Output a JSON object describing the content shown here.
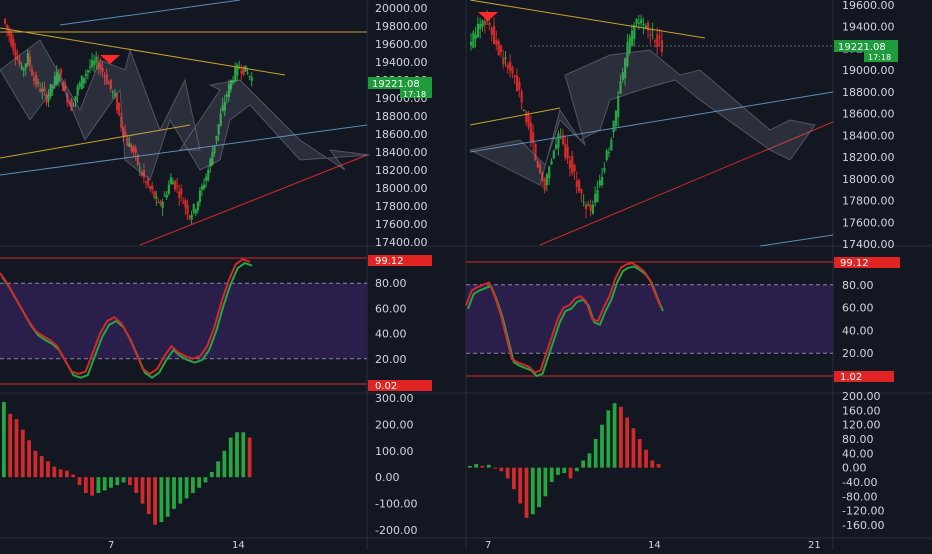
{
  "colors": {
    "background": "#131722",
    "axis_text": "#d1d4dc",
    "up": "#26a641",
    "down": "#d12a2a",
    "band_fill": "#2a1f4a",
    "band_line": "#8a84a8",
    "trend_orange": "#c9a227",
    "trend_blue": "#5b8db8",
    "trend_red": "#d12a2a",
    "price_tag": "#1e9b3a",
    "stoch_tag": "#e02424"
  },
  "left": {
    "price_axis": [
      "20000.00",
      "19800.00",
      "19600.00",
      "19400.00",
      "19200.00",
      "19000.00",
      "18800.00",
      "18600.00",
      "18400.00",
      "18200.00",
      "18000.00",
      "17800.00",
      "17600.00",
      "17400.00"
    ],
    "price_tag": "19221.08",
    "time_tag": "17:18",
    "stoch_axis": [
      "80.00",
      "60.00",
      "40.00",
      "20.00"
    ],
    "stoch_top_tag": "99.12",
    "stoch_bottom_tag": "0.02",
    "macd_axis": [
      "300.00",
      "200.00",
      "100.00",
      "0.00",
      "-100.00",
      "-200.00"
    ],
    "date_labels": [
      "7",
      "14"
    ]
  },
  "right": {
    "price_axis": [
      "19600.00",
      "19400.00",
      "19200.00",
      "19000.00",
      "18800.00",
      "18600.00",
      "18400.00",
      "18200.00",
      "18000.00",
      "17800.00",
      "17600.00",
      "17400.00"
    ],
    "price_tag": "19221.08",
    "time_tag": "17:18",
    "stoch_axis": [
      "80.00",
      "60.00",
      "40.00",
      "20.00"
    ],
    "stoch_top_tag": "99.12",
    "stoch_bottom_tag": "1.02",
    "macd_axis": [
      "200.00",
      "160.00",
      "120.00",
      "80.00",
      "40.00",
      "0.00",
      "-40.00",
      "-80.00",
      "-120.00",
      "-160.00"
    ],
    "date_labels": [
      "7",
      "14",
      "21"
    ]
  },
  "chart_data": [
    {
      "type": "candlestick",
      "panel": "left-price",
      "ylim": [
        17400,
        20000
      ],
      "trend": [
        19880,
        19700,
        19500,
        19300,
        19450,
        19200,
        19100,
        19000,
        19150,
        19300,
        19050,
        18900,
        19100,
        19250,
        19350,
        19400,
        19300,
        19150,
        19000,
        18700,
        18500,
        18400,
        18200,
        18050,
        17950,
        17800,
        17900,
        18100,
        18000,
        17850,
        17700,
        17800,
        18000,
        18200,
        18500,
        18800,
        19050,
        19250,
        19350,
        19300,
        19221
      ]
    },
    {
      "type": "line",
      "panel": "left-stoch",
      "ylim": [
        0,
        100
      ],
      "values": [
        88,
        80,
        70,
        60,
        50,
        42,
        38,
        35,
        30,
        20,
        10,
        8,
        10,
        25,
        40,
        50,
        53,
        48,
        38,
        25,
        12,
        8,
        12,
        22,
        30,
        25,
        22,
        20,
        22,
        30,
        45,
        65,
        82,
        95,
        99,
        97
      ]
    },
    {
      "type": "bar",
      "panel": "left-macd",
      "ylim": [
        -200,
        300
      ],
      "values": [
        285,
        240,
        220,
        180,
        140,
        100,
        80,
        60,
        40,
        30,
        25,
        10,
        -30,
        -60,
        -70,
        -60,
        -50,
        -40,
        -30,
        -20,
        -30,
        -60,
        -100,
        -140,
        -180,
        -170,
        -150,
        -120,
        -100,
        -80,
        -60,
        -40,
        -20,
        20,
        60,
        100,
        150,
        170,
        170,
        150
      ]
    },
    {
      "type": "candlestick",
      "panel": "right-price",
      "ylim": [
        17400,
        19600
      ],
      "trend": [
        19200,
        19350,
        19500,
        19400,
        19250,
        19100,
        19000,
        18850,
        18600,
        18400,
        18100,
        17950,
        18200,
        18400,
        18250,
        18100,
        17900,
        17700,
        17750,
        17950,
        18200,
        18500,
        18850,
        19200,
        19400,
        19450,
        19350,
        19300,
        19221
      ]
    },
    {
      "type": "line",
      "panel": "right-stoch",
      "ylim": [
        0,
        100
      ],
      "values": [
        62,
        75,
        78,
        80,
        82,
        70,
        55,
        35,
        15,
        12,
        10,
        8,
        3,
        5,
        20,
        35,
        50,
        60,
        62,
        68,
        70,
        65,
        50,
        48,
        60,
        70,
        85,
        95,
        98,
        99,
        96,
        92,
        85,
        72,
        60
      ]
    },
    {
      "type": "bar",
      "panel": "right-macd",
      "ylim": [
        -160,
        200
      ],
      "values": [
        5,
        10,
        5,
        8,
        0,
        -10,
        -30,
        -60,
        -100,
        -140,
        -130,
        -110,
        -80,
        -40,
        -20,
        -15,
        -30,
        -10,
        20,
        40,
        80,
        120,
        160,
        180,
        170,
        140,
        110,
        80,
        50,
        20,
        10
      ]
    }
  ]
}
